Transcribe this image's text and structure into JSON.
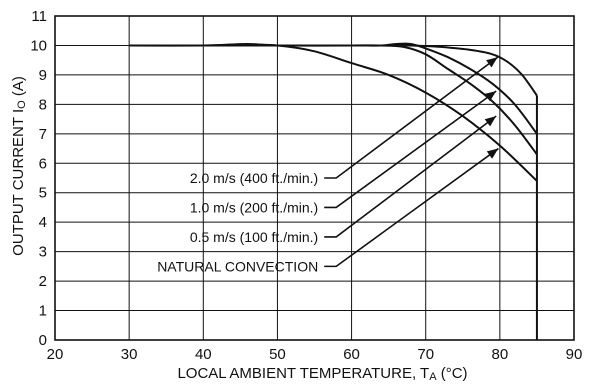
{
  "chart_data": {
    "type": "line",
    "xlabel": "LOCAL AMBIENT TEMPERATURE, T",
    "xlabel_subscript": "A",
    "xlabel_suffix": " (°C)",
    "ylabel": "OUTPUT CURRENT I",
    "ylabel_subscript": "O",
    "ylabel_suffix": " (A)",
    "xlim": [
      20,
      90
    ],
    "ylim": [
      0,
      11
    ],
    "x_ticks": [
      20,
      30,
      40,
      50,
      60,
      70,
      80,
      90
    ],
    "y_ticks": [
      0,
      1,
      2,
      3,
      4,
      5,
      6,
      7,
      8,
      9,
      10,
      11
    ],
    "grid": true,
    "cutoff": {
      "x": 85,
      "y_from": 8.3,
      "y_to": 0
    },
    "series": [
      {
        "name": "2.0 m/s (400 ft./min.)",
        "x": [
          30,
          40,
          50,
          60,
          64,
          68,
          72,
          76,
          79,
          81,
          83,
          85
        ],
        "y": [
          10,
          10,
          10,
          10,
          10,
          10,
          9.95,
          9.85,
          9.7,
          9.45,
          9.0,
          8.3
        ]
      },
      {
        "name": "1.0 m/s (200 ft./min.)",
        "x": [
          30,
          40,
          46,
          50,
          60,
          64,
          66,
          68,
          70,
          73,
          76,
          79,
          82,
          85
        ],
        "y": [
          10,
          10,
          10.05,
          10,
          10,
          10,
          10.05,
          10.05,
          9.9,
          9.6,
          9.2,
          8.7,
          8.0,
          7.0
        ]
      },
      {
        "name": "0.5 m/s (100 ft./min.)",
        "x": [
          30,
          40,
          50,
          55,
          60,
          64,
          67,
          70,
          73,
          76,
          79,
          82,
          85
        ],
        "y": [
          10,
          10,
          10,
          10,
          10,
          10,
          9.95,
          9.7,
          9.2,
          8.7,
          8.1,
          7.3,
          6.3
        ]
      },
      {
        "name": "NATURAL CONVECTION",
        "x": [
          30,
          40,
          45,
          50,
          55,
          60,
          65,
          70,
          75,
          80,
          85
        ],
        "y": [
          10,
          10,
          10.03,
          10,
          9.8,
          9.4,
          9.0,
          8.4,
          7.6,
          6.6,
          5.4
        ]
      }
    ],
    "callouts": [
      {
        "series": 0,
        "label_at": [
          55.5,
          5.5
        ],
        "tip_at": [
          79.7,
          9.6
        ]
      },
      {
        "series": 1,
        "label_at": [
          55.5,
          4.5
        ],
        "tip_at": [
          79.5,
          8.45
        ]
      },
      {
        "series": 2,
        "label_at": [
          55.5,
          3.5
        ],
        "tip_at": [
          79.5,
          7.6
        ]
      },
      {
        "series": 3,
        "label_at": [
          55.5,
          2.5
        ],
        "tip_at": [
          79.8,
          6.5
        ]
      }
    ]
  }
}
